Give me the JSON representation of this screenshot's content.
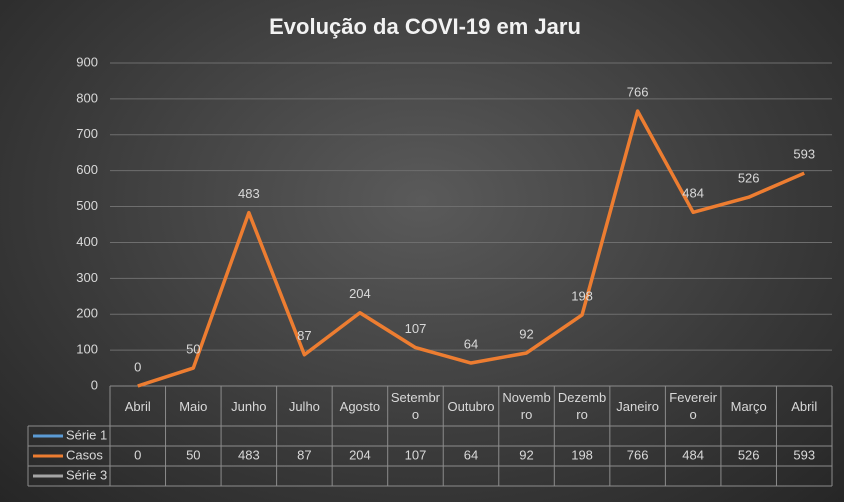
{
  "chart_data": {
    "type": "line",
    "title": "Evolução da COVI-19 em Jaru",
    "categories": [
      "Abril",
      "Maio",
      "Junho",
      "Julho",
      "Agosto",
      "Setembro",
      "Outubro",
      "Novembro",
      "Dezembro",
      "Janeiro",
      "Fevereiro",
      "Março",
      "Abril"
    ],
    "series": [
      {
        "name": "Série 1",
        "color": "#5b9bd5",
        "values": [
          null,
          null,
          null,
          null,
          null,
          null,
          null,
          null,
          null,
          null,
          null,
          null,
          null
        ]
      },
      {
        "name": "Casos",
        "color": "#ed7d31",
        "values": [
          0,
          50,
          483,
          87,
          204,
          107,
          64,
          92,
          198,
          766,
          484,
          526,
          593
        ]
      },
      {
        "name": "Série 3",
        "color": "#a5a5a5",
        "values": [
          null,
          null,
          null,
          null,
          null,
          null,
          null,
          null,
          null,
          null,
          null,
          null,
          null
        ]
      }
    ],
    "ylim": [
      0,
      900
    ],
    "yticks": [
      0,
      100,
      200,
      300,
      400,
      500,
      600,
      700,
      800,
      900
    ],
    "grid": true,
    "data_table": true
  }
}
